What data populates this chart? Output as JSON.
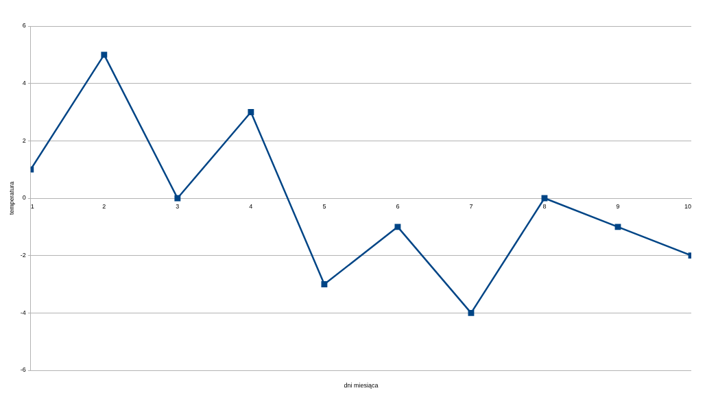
{
  "chart_data": {
    "type": "line",
    "xlabel": "dni miesiąca",
    "ylabel": "temperatura",
    "x": [
      1,
      2,
      3,
      4,
      5,
      6,
      7,
      8,
      9,
      10
    ],
    "series": [
      {
        "color": "#004586",
        "values": [
          1,
          5,
          0,
          3,
          -3,
          -1,
          -4,
          0,
          -1,
          -2
        ]
      }
    ],
    "xlim": [
      1,
      10
    ],
    "xticks": [
      1,
      2,
      3,
      4,
      5,
      6,
      7,
      8,
      9,
      10
    ],
    "ylim": [
      -6,
      6
    ],
    "yticks": [
      -6,
      -4,
      -2,
      0,
      2,
      4,
      6
    ],
    "grid": "y",
    "legend": false,
    "marker": "square",
    "line_style": "solid"
  }
}
